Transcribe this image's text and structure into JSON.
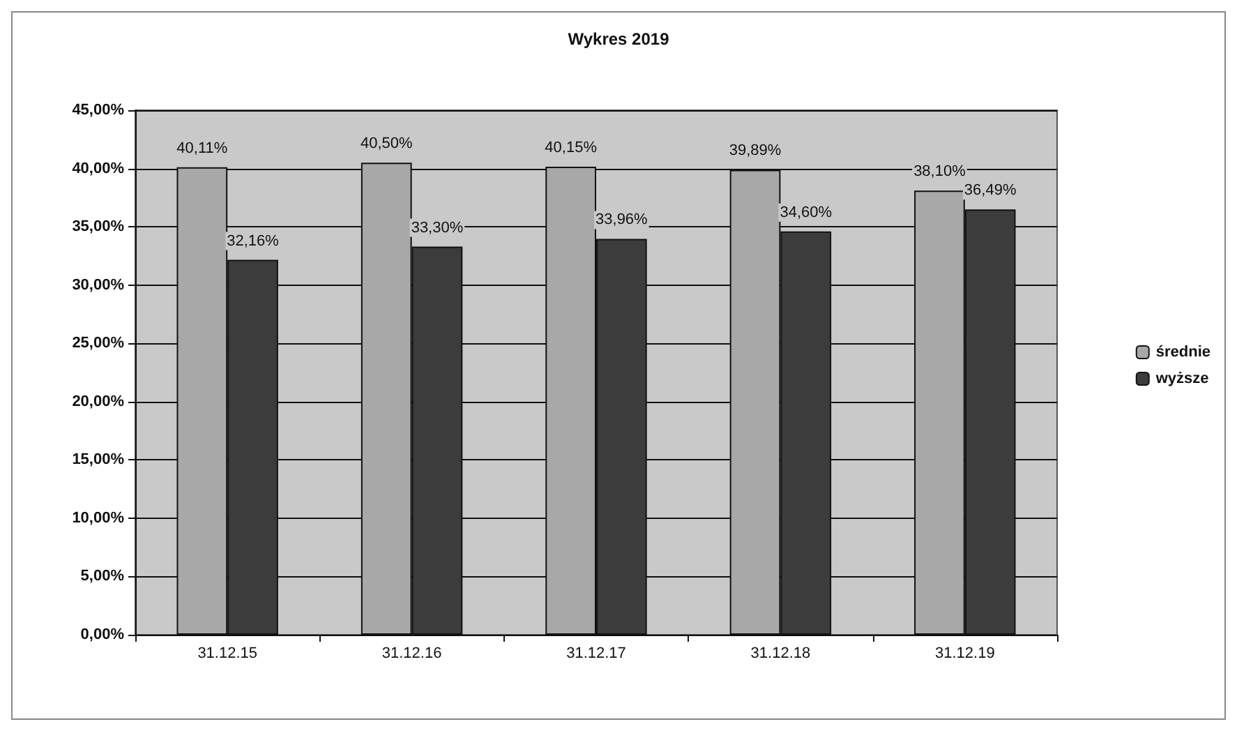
{
  "chart_data": {
    "type": "bar",
    "title": "Wykres 2019",
    "categories": [
      "31.12.15",
      "31.12.16",
      "31.12.17",
      "31.12.18",
      "31.12.19"
    ],
    "series": [
      {
        "name": "średnie",
        "color": "#a8a8a8",
        "values": [
          40.11,
          40.5,
          40.15,
          39.89,
          38.1
        ],
        "value_labels": [
          "40,11%",
          "40,50%",
          "40,15%",
          "39,89%",
          "38,10%"
        ]
      },
      {
        "name": "wyższe",
        "color": "#3c3c3c",
        "values": [
          32.16,
          33.3,
          33.96,
          34.6,
          36.49
        ],
        "value_labels": [
          "32,16%",
          "33,30%",
          "33,96%",
          "34,60%",
          "36,49%"
        ]
      }
    ],
    "ylim": [
      0,
      45
    ],
    "yticks": [
      {
        "value": 0,
        "label": "0,00%"
      },
      {
        "value": 5,
        "label": "5,00%"
      },
      {
        "value": 10,
        "label": "10,00%"
      },
      {
        "value": 15,
        "label": "15,00%"
      },
      {
        "value": 20,
        "label": "20,00%"
      },
      {
        "value": 25,
        "label": "25,00%"
      },
      {
        "value": 30,
        "label": "30,00%"
      },
      {
        "value": 35,
        "label": "35,00%"
      },
      {
        "value": 40,
        "label": "40,00%"
      },
      {
        "value": 45,
        "label": "45,00%"
      }
    ],
    "grid": "y",
    "legend": "right"
  }
}
